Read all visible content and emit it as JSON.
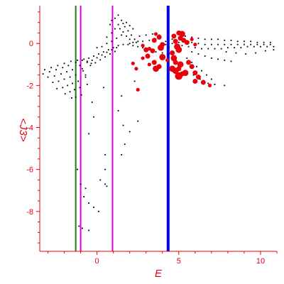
{
  "chart_data": {
    "type": "scatter",
    "title": "",
    "xlabel": "E",
    "ylabel": "<J3>",
    "xlim": [
      -3.5,
      11
    ],
    "ylim": [
      -9.9,
      1.8
    ],
    "grid": false,
    "colors": {
      "axis": "#e8000b",
      "tick_label": "#e8000b",
      "background_points": "#000000",
      "highlight_points": "#e8000b",
      "vline_green": "#1a7f1a",
      "vline_magenta": "#e000e0",
      "vline_blue": "#0000ff"
    },
    "x_ticks": [
      0,
      5,
      10
    ],
    "y_ticks": [
      0,
      -2,
      -4,
      -6,
      -8
    ],
    "vertical_lines": [
      {
        "x": -1.3,
        "color": "#1a7f1a",
        "width": 2
      },
      {
        "x": -1.0,
        "color": "#e000e0",
        "width": 2
      },
      {
        "x": 0.95,
        "color": "#e000e0",
        "width": 2
      },
      {
        "x": 4.35,
        "color": "#0000ff",
        "width": 4
      }
    ],
    "series": [
      {
        "color": "#000000",
        "points": [
          [
            -3.6,
            -1.35
          ],
          [
            -3.3,
            -1.45
          ],
          [
            -3.0,
            -1.6
          ],
          [
            -2.7,
            -1.85
          ],
          [
            -2.45,
            -2.15
          ],
          [
            -3.2,
            -1.25
          ],
          [
            -2.9,
            -1.35
          ],
          [
            -2.6,
            -1.55
          ],
          [
            -2.35,
            -1.8
          ],
          [
            -2.1,
            -2.1
          ],
          [
            -1.95,
            -2.4
          ],
          [
            -2.8,
            -1.15
          ],
          [
            -2.5,
            -1.25
          ],
          [
            -2.2,
            -1.45
          ],
          [
            -2.0,
            -1.7
          ],
          [
            -1.8,
            -2.0
          ],
          [
            -1.65,
            -2.3
          ],
          [
            -1.55,
            -2.6
          ],
          [
            -2.4,
            -1.05
          ],
          [
            -2.1,
            -1.15
          ],
          [
            -1.85,
            -1.35
          ],
          [
            -1.65,
            -1.6
          ],
          [
            -1.5,
            -1.9
          ],
          [
            -1.38,
            -2.2
          ],
          [
            -1.3,
            -2.55
          ],
          [
            -2.0,
            -0.95
          ],
          [
            -1.75,
            -1.05
          ],
          [
            -1.5,
            -1.25
          ],
          [
            -1.3,
            -1.5
          ],
          [
            -1.15,
            -1.8
          ],
          [
            -1.05,
            -2.1
          ],
          [
            -0.95,
            -2.45
          ],
          [
            -1.6,
            -0.85
          ],
          [
            -1.3,
            -0.9
          ],
          [
            -1.05,
            -1.05
          ],
          [
            -0.85,
            -1.3
          ],
          [
            -0.7,
            -1.6
          ],
          [
            -0.6,
            -1.95
          ],
          [
            -1.2,
            -0.8
          ],
          [
            -0.9,
            -0.8
          ],
          [
            -0.6,
            -0.85
          ],
          [
            -0.35,
            -0.95
          ],
          [
            -0.8,
            -0.75
          ],
          [
            -0.5,
            -0.7
          ],
          [
            -0.2,
            -0.6
          ],
          [
            0.1,
            -0.5
          ],
          [
            0.4,
            -0.4
          ],
          [
            0.7,
            -0.3
          ],
          [
            1.0,
            -0.2
          ],
          [
            1.3,
            -0.1
          ],
          [
            -0.6,
            -0.9
          ],
          [
            -0.3,
            -0.8
          ],
          [
            0.0,
            -0.68
          ],
          [
            0.3,
            -0.55
          ],
          [
            0.6,
            -0.42
          ],
          [
            0.9,
            -0.3
          ],
          [
            1.2,
            -0.2
          ],
          [
            -0.4,
            -1.05
          ],
          [
            -0.1,
            -0.92
          ],
          [
            0.2,
            -0.78
          ],
          [
            0.5,
            -0.64
          ],
          [
            0.8,
            -0.5
          ],
          [
            1.1,
            -0.38
          ],
          [
            0.0,
            -0.2
          ],
          [
            0.3,
            -0.15
          ],
          [
            0.6,
            0.0
          ],
          [
            0.9,
            0.1
          ],
          [
            1.2,
            0.25
          ],
          [
            1.5,
            0.4
          ],
          [
            0.6,
            0.3
          ],
          [
            0.9,
            0.5
          ],
          [
            1.1,
            0.7
          ],
          [
            1.3,
            0.9
          ],
          [
            1.5,
            1.1
          ],
          [
            1.1,
            1.2
          ],
          [
            1.3,
            1.35
          ],
          [
            0.8,
            0.9
          ],
          [
            0.9,
            1.1
          ],
          [
            1.7,
            0.8
          ],
          [
            1.9,
            0.6
          ],
          [
            2.1,
            0.4
          ],
          [
            2.3,
            0.2
          ],
          [
            2.5,
            0.1
          ],
          [
            1.6,
            0.55
          ],
          [
            1.8,
            0.35
          ],
          [
            2.0,
            0.2
          ],
          [
            2.2,
            0.05
          ],
          [
            1.4,
            0.7
          ],
          [
            1.6,
            0.95
          ],
          [
            1.8,
            1.0
          ],
          [
            2.0,
            0.85
          ],
          [
            2.2,
            0.7
          ],
          [
            1.6,
            -0.05
          ],
          [
            1.9,
            -0.05
          ],
          [
            2.2,
            -0.1
          ],
          [
            2.5,
            -0.15
          ],
          [
            2.8,
            -0.2
          ],
          [
            3.1,
            -0.25
          ],
          [
            2.0,
            0.0
          ],
          [
            2.4,
            0.05
          ],
          [
            2.8,
            0.1
          ],
          [
            3.2,
            0.15
          ],
          [
            3.6,
            0.2
          ],
          [
            2.6,
            0.35
          ],
          [
            3.0,
            0.4
          ],
          [
            3.4,
            0.45
          ],
          [
            3.8,
            0.4
          ],
          [
            3.2,
            -0.3
          ],
          [
            3.6,
            -0.4
          ],
          [
            4.0,
            -0.45
          ],
          [
            4.4,
            -0.5
          ],
          [
            4.2,
            0.1
          ],
          [
            4.6,
            0.2
          ],
          [
            5.0,
            0.3
          ],
          [
            5.4,
            0.35
          ],
          [
            5.8,
            0.3
          ],
          [
            6.2,
            0.25
          ],
          [
            6.6,
            0.2
          ],
          [
            7.0,
            0.2
          ],
          [
            7.4,
            0.2
          ],
          [
            7.8,
            0.15
          ],
          [
            8.2,
            0.15
          ],
          [
            8.6,
            0.1
          ],
          [
            9.0,
            0.1
          ],
          [
            9.4,
            0.1
          ],
          [
            9.8,
            0.05
          ],
          [
            10.2,
            0.05
          ],
          [
            10.6,
            0.05
          ],
          [
            4.2,
            -0.05
          ],
          [
            4.6,
            0.0
          ],
          [
            5.0,
            0.05
          ],
          [
            5.4,
            0.1
          ],
          [
            5.8,
            0.05
          ],
          [
            6.2,
            0.0
          ],
          [
            6.6,
            -0.05
          ],
          [
            7.0,
            -0.05
          ],
          [
            7.4,
            -0.05
          ],
          [
            7.8,
            -0.05
          ],
          [
            8.2,
            -0.05
          ],
          [
            8.6,
            -0.05
          ],
          [
            9.0,
            -0.05
          ],
          [
            9.4,
            -0.05
          ],
          [
            9.8,
            -0.05
          ],
          [
            10.2,
            -0.05
          ],
          [
            10.6,
            -0.05
          ],
          [
            4.4,
            -0.2
          ],
          [
            4.8,
            -0.15
          ],
          [
            5.2,
            -0.1
          ],
          [
            5.6,
            -0.15
          ],
          [
            6.0,
            -0.2
          ],
          [
            6.4,
            -0.25
          ],
          [
            6.8,
            -0.25
          ],
          [
            7.2,
            -0.25
          ],
          [
            7.6,
            -0.25
          ],
          [
            8.0,
            -0.2
          ],
          [
            8.4,
            -0.2
          ],
          [
            8.8,
            -0.2
          ],
          [
            9.2,
            -0.15
          ],
          [
            9.6,
            -0.15
          ],
          [
            10.0,
            -0.15
          ],
          [
            10.4,
            -0.15
          ],
          [
            10.8,
            -0.15
          ],
          [
            5.8,
            -0.4
          ],
          [
            6.2,
            -0.5
          ],
          [
            6.6,
            -0.6
          ],
          [
            7.0,
            -0.7
          ],
          [
            7.4,
            -0.75
          ],
          [
            7.8,
            -0.8
          ],
          [
            8.2,
            -0.85
          ],
          [
            5.5,
            -0.7
          ],
          [
            5.8,
            -0.9
          ],
          [
            6.1,
            -1.1
          ],
          [
            6.4,
            -1.3
          ],
          [
            6.7,
            -1.5
          ],
          [
            7.0,
            -1.7
          ],
          [
            7.9,
            -0.4
          ],
          [
            8.5,
            -0.45
          ],
          [
            9.1,
            -0.5
          ],
          [
            9.7,
            -0.45
          ],
          [
            10.3,
            -0.35
          ],
          [
            10.8,
            -0.3
          ],
          [
            5.9,
            -1.5
          ],
          [
            6.3,
            -1.7
          ],
          [
            6.8,
            -1.9
          ],
          [
            7.2,
            -1.95
          ],
          [
            7.8,
            -2.0
          ],
          [
            -0.9,
            -1.2
          ],
          [
            -0.7,
            -1.5
          ],
          [
            -0.3,
            -2.8
          ],
          [
            -0.2,
            -3.5
          ],
          [
            -0.5,
            -4.3
          ],
          [
            1.5,
            -2.5
          ],
          [
            1.3,
            -3.2
          ],
          [
            1.6,
            -3.9
          ],
          [
            2.0,
            -4.2
          ],
          [
            1.7,
            -4.8
          ],
          [
            1.5,
            -5.3
          ],
          [
            0.5,
            -5.3
          ],
          [
            0.5,
            -6.0
          ],
          [
            0.2,
            -6.5
          ],
          [
            0.5,
            -6.7
          ],
          [
            0.6,
            -6.8
          ],
          [
            -1.2,
            -6.0
          ],
          [
            -1.0,
            -6.7
          ],
          [
            -0.8,
            -7.3
          ],
          [
            -0.5,
            -7.6
          ],
          [
            -0.2,
            -7.8
          ],
          [
            0.1,
            -8.0
          ],
          [
            -1.1,
            -8.7
          ],
          [
            -0.9,
            -8.8
          ],
          [
            -0.5,
            -8.9
          ],
          [
            -0.7,
            -6.9
          ],
          [
            2.5,
            -3.7
          ],
          [
            0.4,
            -2.1
          ],
          [
            2.3,
            -1.8
          ]
        ]
      },
      {
        "color": "#e8000b",
        "points": [
          [
            2.8,
            -0.1,
            2
          ],
          [
            3.0,
            -0.3,
            3
          ],
          [
            3.2,
            -0.25,
            2
          ],
          [
            3.1,
            -0.6,
            3
          ],
          [
            3.4,
            -0.35,
            3
          ],
          [
            3.5,
            0.15,
            3
          ],
          [
            3.6,
            0.45,
            2
          ],
          [
            3.8,
            0.3,
            3
          ],
          [
            3.9,
            -0.2,
            4
          ],
          [
            4.0,
            -0.65,
            4
          ],
          [
            3.6,
            -1.2,
            4
          ],
          [
            3.8,
            -1.1,
            3
          ],
          [
            3.5,
            -0.9,
            3
          ],
          [
            4.0,
            -0.05,
            3
          ],
          [
            4.7,
            0.35,
            3
          ],
          [
            4.8,
            0.1,
            3
          ],
          [
            4.9,
            -0.15,
            4
          ],
          [
            5.0,
            -0.3,
            4
          ],
          [
            5.1,
            0.25,
            3
          ],
          [
            5.2,
            0.45,
            4
          ],
          [
            5.3,
            0.15,
            3
          ],
          [
            5.0,
            0.5,
            3
          ],
          [
            4.6,
            -0.45,
            3
          ],
          [
            4.7,
            -0.7,
            4
          ],
          [
            4.8,
            -0.9,
            3
          ],
          [
            4.6,
            -1.2,
            4
          ],
          [
            4.8,
            -1.3,
            4
          ],
          [
            5.0,
            -1.2,
            3
          ],
          [
            5.1,
            -1.0,
            4
          ],
          [
            5.2,
            -1.45,
            3
          ],
          [
            5.0,
            -1.55,
            5
          ],
          [
            5.4,
            -1.4,
            4
          ],
          [
            5.6,
            -0.9,
            3
          ],
          [
            5.8,
            -1.1,
            3
          ],
          [
            6.0,
            -1.4,
            3
          ],
          [
            6.2,
            -1.6,
            3
          ],
          [
            6.5,
            -1.85,
            3
          ],
          [
            6.0,
            -1.8,
            3
          ],
          [
            5.5,
            0.05,
            3
          ],
          [
            5.8,
            0.2,
            2
          ],
          [
            6.0,
            -0.05,
            2
          ],
          [
            2.5,
            -2.2,
            2
          ],
          [
            2.8,
            -0.7,
            2
          ],
          [
            2.4,
            -1.2,
            2
          ],
          [
            2.2,
            -0.95,
            2
          ],
          [
            3.2,
            -1.0,
            2
          ],
          [
            6.9,
            -2.0,
            2
          ],
          [
            4.3,
            -0.8,
            2
          ]
        ]
      }
    ]
  }
}
